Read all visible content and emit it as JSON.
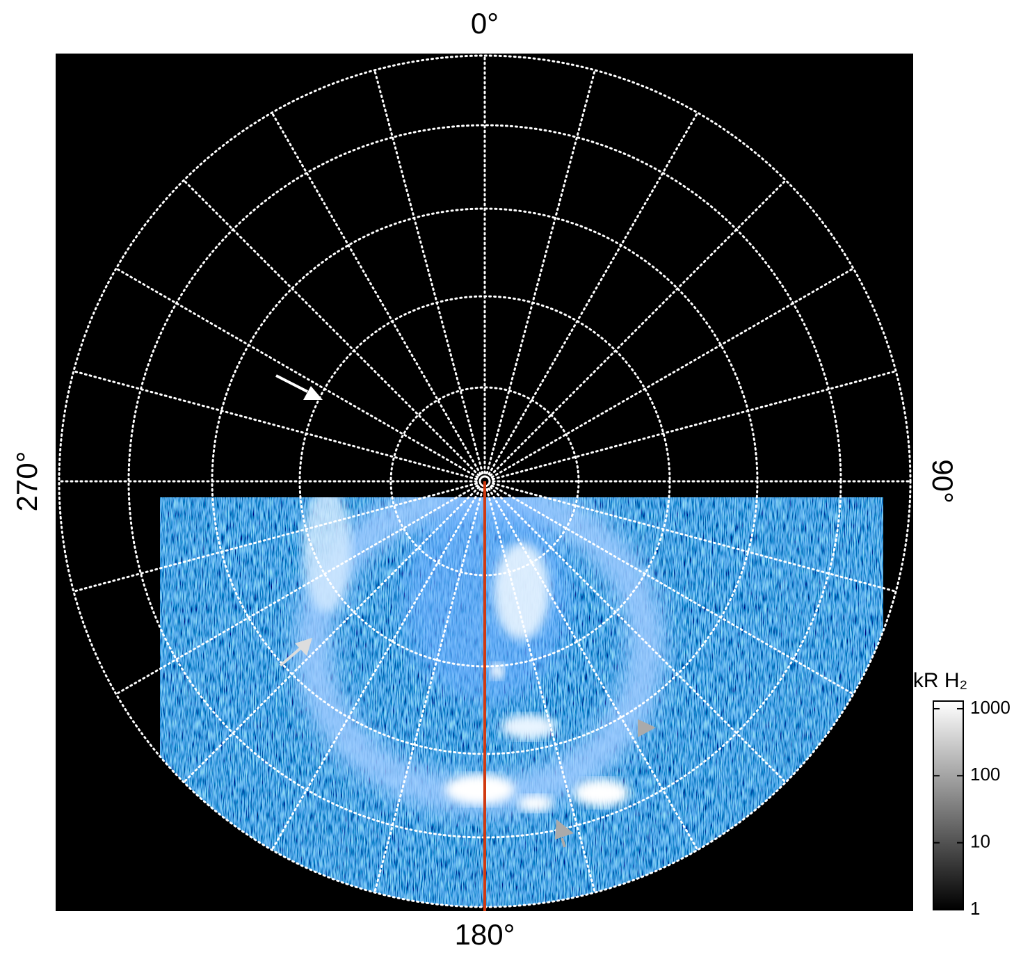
{
  "chart_data": {
    "type": "polar-image",
    "angle_ticks": [
      {
        "value": 0,
        "label": "0°"
      },
      {
        "value": 90,
        "label": "90°"
      },
      {
        "value": 180,
        "label": "180°"
      },
      {
        "value": 270,
        "label": "270°"
      }
    ],
    "colorbar": {
      "title": "kR H₂",
      "scale": "log",
      "lim": [
        1,
        1300
      ],
      "ticks": [
        1,
        10,
        100,
        1000
      ]
    }
  }
}
